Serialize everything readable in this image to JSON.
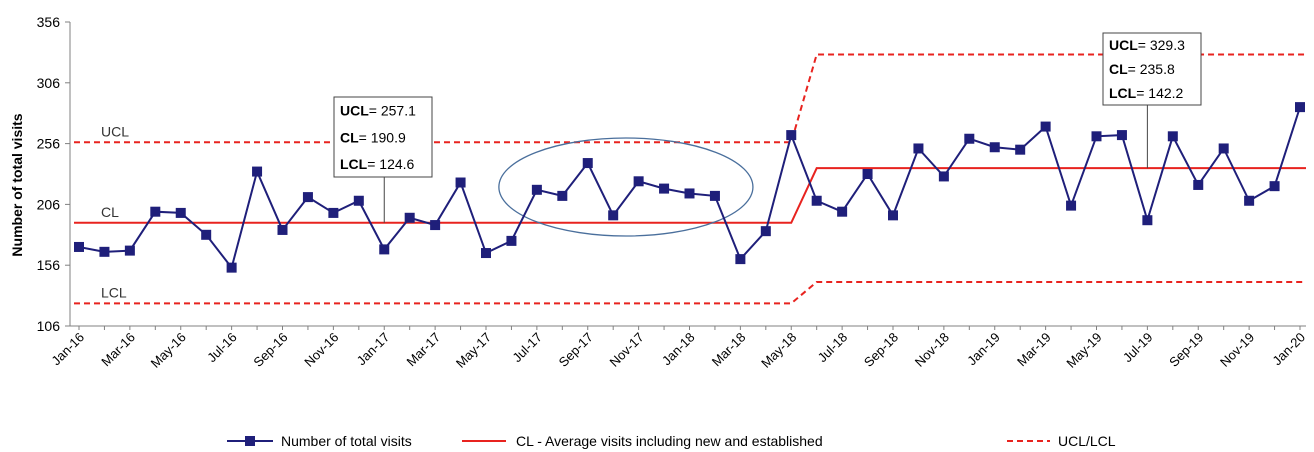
{
  "chart_data": {
    "type": "line",
    "ylabel": "Number of total visits",
    "ylim": [
      106,
      356
    ],
    "yticks": [
      106,
      156,
      206,
      256,
      306,
      356
    ],
    "x_tick_labels": [
      "Jan-16",
      "Mar-16",
      "May-16",
      "Jul-16",
      "Sep-16",
      "Nov-16",
      "Jan-17",
      "Mar-17",
      "May-17",
      "Jul-17",
      "Sep-17",
      "Nov-17",
      "Jan-18",
      "Mar-18",
      "May-18",
      "Jul-18",
      "Sep-18",
      "Nov-18",
      "Jan-19",
      "Mar-19",
      "May-19",
      "Jul-19",
      "Sep-19",
      "Nov-19",
      "Jan-20"
    ],
    "x_months": [
      "Jan-16",
      "Feb-16",
      "Mar-16",
      "Apr-16",
      "May-16",
      "Jun-16",
      "Jul-16",
      "Aug-16",
      "Sep-16",
      "Oct-16",
      "Nov-16",
      "Dec-16",
      "Jan-17",
      "Feb-17",
      "Mar-17",
      "Apr-17",
      "May-17",
      "Jun-17",
      "Jul-17",
      "Aug-17",
      "Sep-17",
      "Oct-17",
      "Nov-17",
      "Dec-17",
      "Jan-18",
      "Feb-18",
      "Mar-18",
      "Apr-18",
      "May-18",
      "Jun-18",
      "Jul-18",
      "Aug-18",
      "Sep-18",
      "Oct-18",
      "Nov-18",
      "Dec-18",
      "Jan-19",
      "Feb-19",
      "Mar-19",
      "Apr-19",
      "May-19",
      "Jun-19",
      "Jul-19",
      "Aug-19",
      "Sep-19",
      "Oct-19",
      "Nov-19",
      "Dec-19",
      "Jan-20"
    ],
    "series": [
      {
        "name": "Number of total visits",
        "color": "#1f1f7a",
        "marker": "square",
        "values": [
          171,
          167,
          168,
          200,
          199,
          181,
          154,
          233,
          185,
          212,
          199,
          209,
          169,
          195,
          189,
          224,
          166,
          176,
          218,
          213,
          240,
          197,
          225,
          219,
          215,
          213,
          161,
          184,
          263,
          209,
          200,
          231,
          197,
          252,
          229,
          260,
          253,
          251,
          270,
          205,
          262,
          263,
          193,
          262,
          222,
          252,
          209,
          221,
          286
        ]
      }
    ],
    "control_limits": {
      "phase1": {
        "start": "Jan-16",
        "end": "May-18",
        "ucl": 257.1,
        "cl": 190.9,
        "lcl": 124.6
      },
      "phase2": {
        "start": "Jun-18",
        "end": "Jan-20",
        "ucl": 329.3,
        "cl": 235.8,
        "lcl": 142.2
      }
    },
    "line_labels": {
      "ucl": "UCL",
      "cl": "CL",
      "lcl": "LCL"
    },
    "annotations": [
      {
        "ucl_label": "UCL",
        "ucl_value": "= 257.1",
        "cl_label": "CL",
        "cl_value": "= 190.9",
        "lcl_label": "LCL",
        "lcl_value": "= 124.6",
        "anchor_month": "Jan-17"
      },
      {
        "ucl_label": "UCL",
        "ucl_value": "= 329.3",
        "cl_label": "CL",
        "cl_value": "= 235.8",
        "lcl_label": "LCL",
        "lcl_value": "= 142.2",
        "anchor_month": "Jul-19"
      }
    ],
    "highlight": {
      "shape": "ellipse",
      "start": "Jul-17",
      "end": "Feb-18"
    },
    "legend": {
      "placement": "bottom",
      "entries": [
        {
          "label": "Number of total visits",
          "style": "line-marker",
          "color": "#1f1f7a"
        },
        {
          "label": "CL - Average visits including new and established",
          "style": "solid",
          "color": "#e8231f"
        },
        {
          "label": "UCL/LCL",
          "style": "dashed",
          "color": "#e8231f"
        }
      ]
    },
    "colors": {
      "series": "#1f1f7a",
      "limits": "#e8231f",
      "highlight": "#4a6f9c",
      "axis": "#808080"
    },
    "grid": false
  }
}
